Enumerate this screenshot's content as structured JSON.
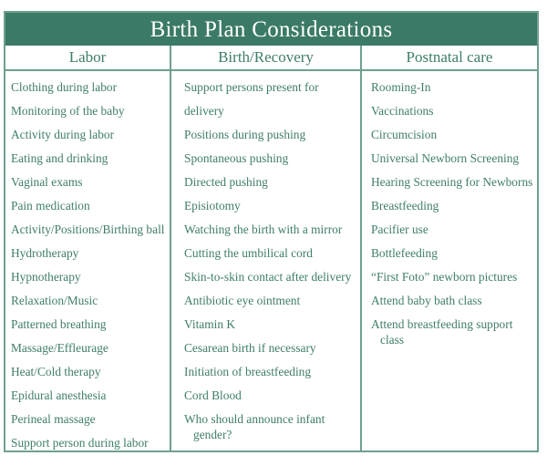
{
  "title": "Birth Plan Considerations",
  "colors": {
    "header_bg": "#3b7a66",
    "text": "#3f7d6a",
    "border": "#6f9f90"
  },
  "columns": [
    {
      "heading": "Labor",
      "items": [
        "Clothing during labor",
        "Monitoring of the baby",
        "Activity during labor",
        "Eating and drinking",
        "Vaginal exams",
        "Pain medication",
        "Activity/Positions/Birthing ball",
        "Hydrotherapy",
        "Hypnotherapy",
        "Relaxation/Music",
        "Patterned breathing",
        "Massage/Effleurage",
        "Heat/Cold therapy",
        "Epidural anesthesia",
        "Perineal massage",
        "Support person during labor"
      ]
    },
    {
      "heading": "Birth/Recovery",
      "items": [
        "Support persons present for delivery",
        "Positions during pushing",
        "Spontaneous pushing",
        "Directed pushing",
        "Episiotomy",
        "Watching the birth with a mirror",
        "Cutting the umbilical cord",
        "Skin-to-skin contact after delivery",
        "Antibiotic eye ointment",
        "Vitamin K",
        "Cesarean birth if necessary",
        "Initiation of breastfeeding",
        "Cord Blood",
        "Who should announce infant gender?"
      ]
    },
    {
      "heading": "Postnatal care",
      "items": [
        "Rooming-In",
        "Vaccinations",
        "Circumcision",
        "Universal Newborn Screening",
        "Hearing Screening for Newborns",
        "Breastfeeding",
        "Pacifier use",
        "Bottlefeeding",
        "“First Foto” newborn pictures",
        "Attend baby bath class",
        "Attend breastfeeding support class"
      ]
    }
  ]
}
